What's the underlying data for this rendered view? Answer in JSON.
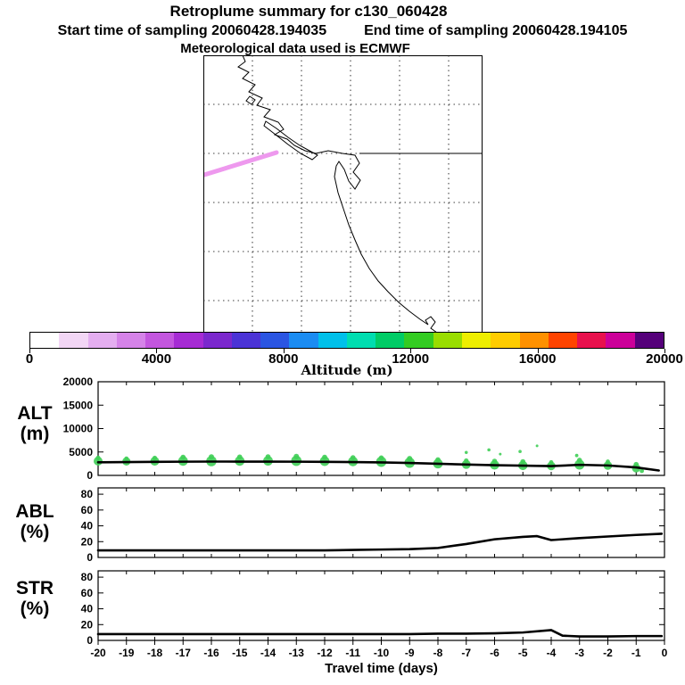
{
  "header": {
    "title": "Retroplume summary for c130_060428",
    "start_label": "Start time of sampling 20060428.194035",
    "end_label": "End time of sampling 20060428.194105",
    "met_label": "Meteorological data used is ECMWF"
  },
  "map": {
    "trajectory": {
      "color": "#ee99ee",
      "points": [
        [
          1,
          134
        ],
        [
          82,
          109
        ]
      ]
    }
  },
  "colorbar": {
    "title": "Altitude (m)",
    "min": 0,
    "max": 20000,
    "tick_labels": [
      "0",
      "4000",
      "8000",
      "12000",
      "16000",
      "20000"
    ],
    "colors": [
      "#ffffff",
      "#f2d6f5",
      "#e4aef0",
      "#d583e8",
      "#c356de",
      "#a62bd4",
      "#7b28cd",
      "#4b33d6",
      "#2a55e2",
      "#1b8cf2",
      "#00c0ea",
      "#00ddb0",
      "#00cc66",
      "#33cc22",
      "#99dd00",
      "#eeee00",
      "#ffcc00",
      "#ff9100",
      "#ff4400",
      "#e8114d",
      "#cc0099",
      "#55007a"
    ]
  },
  "chart_data": [
    {
      "type": "scatter",
      "title": "ALT",
      "ylabel_lines": [
        "ALT",
        "(m)"
      ],
      "ylim": [
        0,
        20000
      ],
      "yticks": [
        0,
        5000,
        10000,
        15000,
        20000
      ],
      "ytick_labels": [
        "0",
        "5000",
        "10000",
        "15000",
        "20000"
      ],
      "line_color": "#000000",
      "dot_color": "#3fce57",
      "line": {
        "x": [
          -20,
          -19,
          -18,
          -17,
          -16,
          -15,
          -14,
          -13,
          -12,
          -11,
          -10,
          -9,
          -8,
          -7,
          -6,
          -5,
          -4,
          -3,
          -2,
          -1,
          -0.2
        ],
        "y": [
          2800,
          2850,
          2900,
          2930,
          2950,
          2950,
          2940,
          2930,
          2900,
          2850,
          2780,
          2650,
          2480,
          2320,
          2180,
          2080,
          1980,
          2260,
          2120,
          1700,
          1050
        ]
      },
      "dots": [
        [
          -20,
          3050,
          5
        ],
        [
          -20,
          3750,
          2.6
        ],
        [
          -19,
          2980,
          4.6
        ],
        [
          -19,
          3600,
          2.4
        ],
        [
          -18,
          3020,
          5
        ],
        [
          -18,
          3720,
          2.6
        ],
        [
          -17,
          3080,
          5.4
        ],
        [
          -17,
          3900,
          2.8
        ],
        [
          -16,
          3050,
          5.8
        ],
        [
          -16,
          3950,
          3
        ],
        [
          -15,
          3080,
          5.4
        ],
        [
          -15,
          3950,
          2.8
        ],
        [
          -14,
          3120,
          5.4
        ],
        [
          -14,
          4000,
          2.8
        ],
        [
          -13,
          3120,
          5.8
        ],
        [
          -13,
          4050,
          3
        ],
        [
          -12,
          3040,
          5.4
        ],
        [
          -12,
          3900,
          2.8
        ],
        [
          -11,
          2980,
          5.4
        ],
        [
          -11,
          3800,
          2.8
        ],
        [
          -10,
          2920,
          5.8
        ],
        [
          -10,
          3750,
          2.8
        ],
        [
          -9,
          2720,
          5.8
        ],
        [
          -9,
          3600,
          3
        ],
        [
          -8,
          2520,
          5.4
        ],
        [
          -8,
          3350,
          2.8
        ],
        [
          -7,
          2350,
          5
        ],
        [
          -7,
          3150,
          2.6
        ],
        [
          -7,
          4900,
          1.8
        ],
        [
          -6,
          2220,
          5.2
        ],
        [
          -6,
          3050,
          2.8
        ],
        [
          -6.2,
          5450,
          1.8
        ],
        [
          -5.8,
          4550,
          1.5
        ],
        [
          -5,
          2120,
          5.2
        ],
        [
          -5,
          2950,
          2.8
        ],
        [
          -5.1,
          5100,
          1.8
        ],
        [
          -4.5,
          6300,
          1.5
        ],
        [
          -4,
          2020,
          4.8
        ],
        [
          -4,
          2800,
          2.4
        ],
        [
          -3,
          2300,
          5.6
        ],
        [
          -3,
          3250,
          2.8
        ],
        [
          -3.1,
          4250,
          1.9
        ],
        [
          -2,
          2100,
          4.8
        ],
        [
          -2,
          2950,
          2.4
        ],
        [
          -1,
          1550,
          4.8
        ],
        [
          -1,
          2350,
          2.8
        ],
        [
          -0.8,
          950,
          2.4
        ]
      ]
    },
    {
      "type": "line",
      "title": "ABL",
      "ylabel_lines": [
        "ABL",
        "(%)"
      ],
      "ylim": [
        0,
        88
      ],
      "yticks": [
        0,
        20,
        40,
        60,
        80
      ],
      "ytick_labels": [
        "0",
        "20",
        "40",
        "60",
        "80"
      ],
      "line_color": "#000000",
      "line": {
        "x": [
          -20,
          -19,
          -18,
          -17,
          -16,
          -15,
          -14,
          -13,
          -12,
          -11,
          -10,
          -9,
          -8,
          -7,
          -6,
          -5,
          -4.5,
          -4,
          -3,
          -2,
          -1,
          -0.1
        ],
        "y": [
          9,
          9,
          9,
          9,
          9,
          9,
          9,
          9,
          9,
          9.5,
          10,
          10.5,
          12,
          17,
          23,
          26,
          27,
          22,
          24.5,
          26.5,
          28.5,
          30
        ]
      }
    },
    {
      "type": "line",
      "title": "STR",
      "ylabel_lines": [
        "STR",
        "(%)"
      ],
      "ylim": [
        0,
        88
      ],
      "yticks": [
        0,
        20,
        40,
        60,
        80
      ],
      "ytick_labels": [
        "0",
        "20",
        "40",
        "60",
        "80"
      ],
      "line_color": "#000000",
      "line": {
        "x": [
          -20,
          -19,
          -18,
          -17,
          -16,
          -15,
          -14,
          -13,
          -12,
          -11,
          -10,
          -9,
          -8,
          -7,
          -6,
          -5,
          -4,
          -3.6,
          -3,
          -2,
          -1,
          -0.1
        ],
        "y": [
          8,
          8,
          8,
          8,
          8,
          8,
          8,
          8,
          8,
          8,
          8,
          8,
          8.5,
          8.5,
          9,
          10,
          13,
          6,
          5,
          5,
          5.5,
          5.5
        ]
      }
    }
  ],
  "xaxis": {
    "label": "Travel time (days)",
    "range": [
      -20,
      0
    ],
    "ticks": [
      -20,
      -19,
      -18,
      -17,
      -16,
      -15,
      -14,
      -13,
      -12,
      -11,
      -10,
      -9,
      -8,
      -7,
      -6,
      -5,
      -4,
      -3,
      -2,
      -1,
      0
    ],
    "tick_labels": [
      "-20",
      "-19",
      "-18",
      "-17",
      "-16",
      "-15",
      "-14",
      "-13",
      "-12",
      "-11",
      "-10",
      "-9",
      "-8",
      "-7",
      "-6",
      "-5",
      "-4",
      "-3",
      "-2",
      "-1",
      "0"
    ]
  }
}
